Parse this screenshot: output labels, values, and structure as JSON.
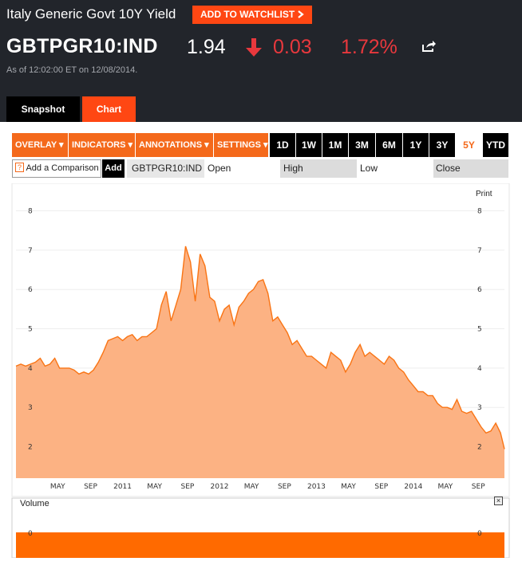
{
  "header": {
    "title": "Italy Generic Govt 10Y Yield",
    "watchlist_label": "ADD TO WATCHLIST",
    "ticker": "GBTPGR10:IND",
    "price": "1.94",
    "change": "0.03",
    "change_pct": "1.72%",
    "as_of": "As of 12:02:00 ET on 12/08/2014."
  },
  "tabs": {
    "snapshot": "Snapshot",
    "chart": "Chart"
  },
  "toolbar": {
    "overlay": "OVERLAY ▾",
    "indicators": "INDICATORS ▾",
    "annotations": "ANNOTATIONS ▾",
    "settings": "SETTINGS ▾",
    "ranges": [
      "1D",
      "1W",
      "1M",
      "3M",
      "6M",
      "1Y",
      "3Y",
      "5Y",
      "YTD"
    ],
    "selected_range": "5Y"
  },
  "comparison": {
    "placeholder": "Add a Comparison",
    "help": "?",
    "add_label": "Add",
    "symbol": "GBTPGR10:IND",
    "open": "Open",
    "high": "High",
    "low": "Low",
    "close": "Close"
  },
  "chart": {
    "print_label": "Print",
    "volume_label": "Volume",
    "close_label": "×"
  },
  "chart_data": {
    "type": "area",
    "y_ticks": [
      2,
      3,
      4,
      5,
      6,
      7,
      8
    ],
    "ylim": [
      1.2,
      8.7
    ],
    "x_labels": [
      "MAY",
      "SEP",
      "2011",
      "MAY",
      "SEP",
      "2012",
      "MAY",
      "SEP",
      "2013",
      "MAY",
      "SEP",
      "2014",
      "MAY",
      "SEP"
    ],
    "x_label_pos": [
      1.33,
      1.67,
      2.0,
      2.33,
      2.67,
      3.0,
      3.33,
      3.67,
      4.0,
      4.33,
      4.67,
      5.0,
      5.33,
      5.67
    ],
    "xlim": [
      0.9,
      5.94
    ],
    "x": [
      0.9,
      0.95,
      1.0,
      1.05,
      1.1,
      1.15,
      1.2,
      1.25,
      1.3,
      1.35,
      1.4,
      1.45,
      1.5,
      1.55,
      1.6,
      1.65,
      1.7,
      1.75,
      1.8,
      1.85,
      1.9,
      1.95,
      2.0,
      2.05,
      2.1,
      2.15,
      2.2,
      2.25,
      2.3,
      2.35,
      2.4,
      2.45,
      2.5,
      2.55,
      2.6,
      2.65,
      2.7,
      2.75,
      2.8,
      2.85,
      2.9,
      2.95,
      3.0,
      3.05,
      3.1,
      3.15,
      3.2,
      3.25,
      3.3,
      3.35,
      3.4,
      3.45,
      3.5,
      3.55,
      3.6,
      3.65,
      3.7,
      3.75,
      3.8,
      3.85,
      3.9,
      3.95,
      4.0,
      4.05,
      4.1,
      4.15,
      4.2,
      4.25,
      4.3,
      4.35,
      4.4,
      4.45,
      4.5,
      4.55,
      4.6,
      4.65,
      4.7,
      4.75,
      4.8,
      4.85,
      4.9,
      4.95,
      5.0,
      5.05,
      5.1,
      5.15,
      5.2,
      5.25,
      5.3,
      5.35,
      5.4,
      5.45,
      5.5,
      5.55,
      5.6,
      5.65,
      5.7,
      5.75,
      5.8,
      5.85,
      5.9,
      5.94
    ],
    "y": [
      4.05,
      4.1,
      4.05,
      4.1,
      4.15,
      4.25,
      4.05,
      4.1,
      4.25,
      4.0,
      4.0,
      4.0,
      3.95,
      3.85,
      3.9,
      3.85,
      3.95,
      4.15,
      4.4,
      4.7,
      4.75,
      4.8,
      4.7,
      4.8,
      4.85,
      4.7,
      4.8,
      4.8,
      4.9,
      5.0,
      5.6,
      5.95,
      5.2,
      5.6,
      6.0,
      7.1,
      6.7,
      5.7,
      6.9,
      6.6,
      5.8,
      5.7,
      5.2,
      5.5,
      5.6,
      5.1,
      5.55,
      5.7,
      5.9,
      6.0,
      6.2,
      6.25,
      5.9,
      5.2,
      5.3,
      5.1,
      4.9,
      4.6,
      4.7,
      4.5,
      4.3,
      4.3,
      4.2,
      4.1,
      4.0,
      4.4,
      4.3,
      4.2,
      3.9,
      4.1,
      4.4,
      4.6,
      4.3,
      4.4,
      4.3,
      4.2,
      4.1,
      4.3,
      4.2,
      4.0,
      3.9,
      3.7,
      3.55,
      3.4,
      3.4,
      3.3,
      3.3,
      3.1,
      3.0,
      3.0,
      2.95,
      3.2,
      2.9,
      2.85,
      2.9,
      2.7,
      2.5,
      2.35,
      2.4,
      2.6,
      2.35,
      1.94
    ]
  },
  "colors": {
    "accent": "#ff4713",
    "orange": "#f4691b",
    "line": "#f97414",
    "fill": "#fcb283",
    "down": "#e8383d"
  }
}
